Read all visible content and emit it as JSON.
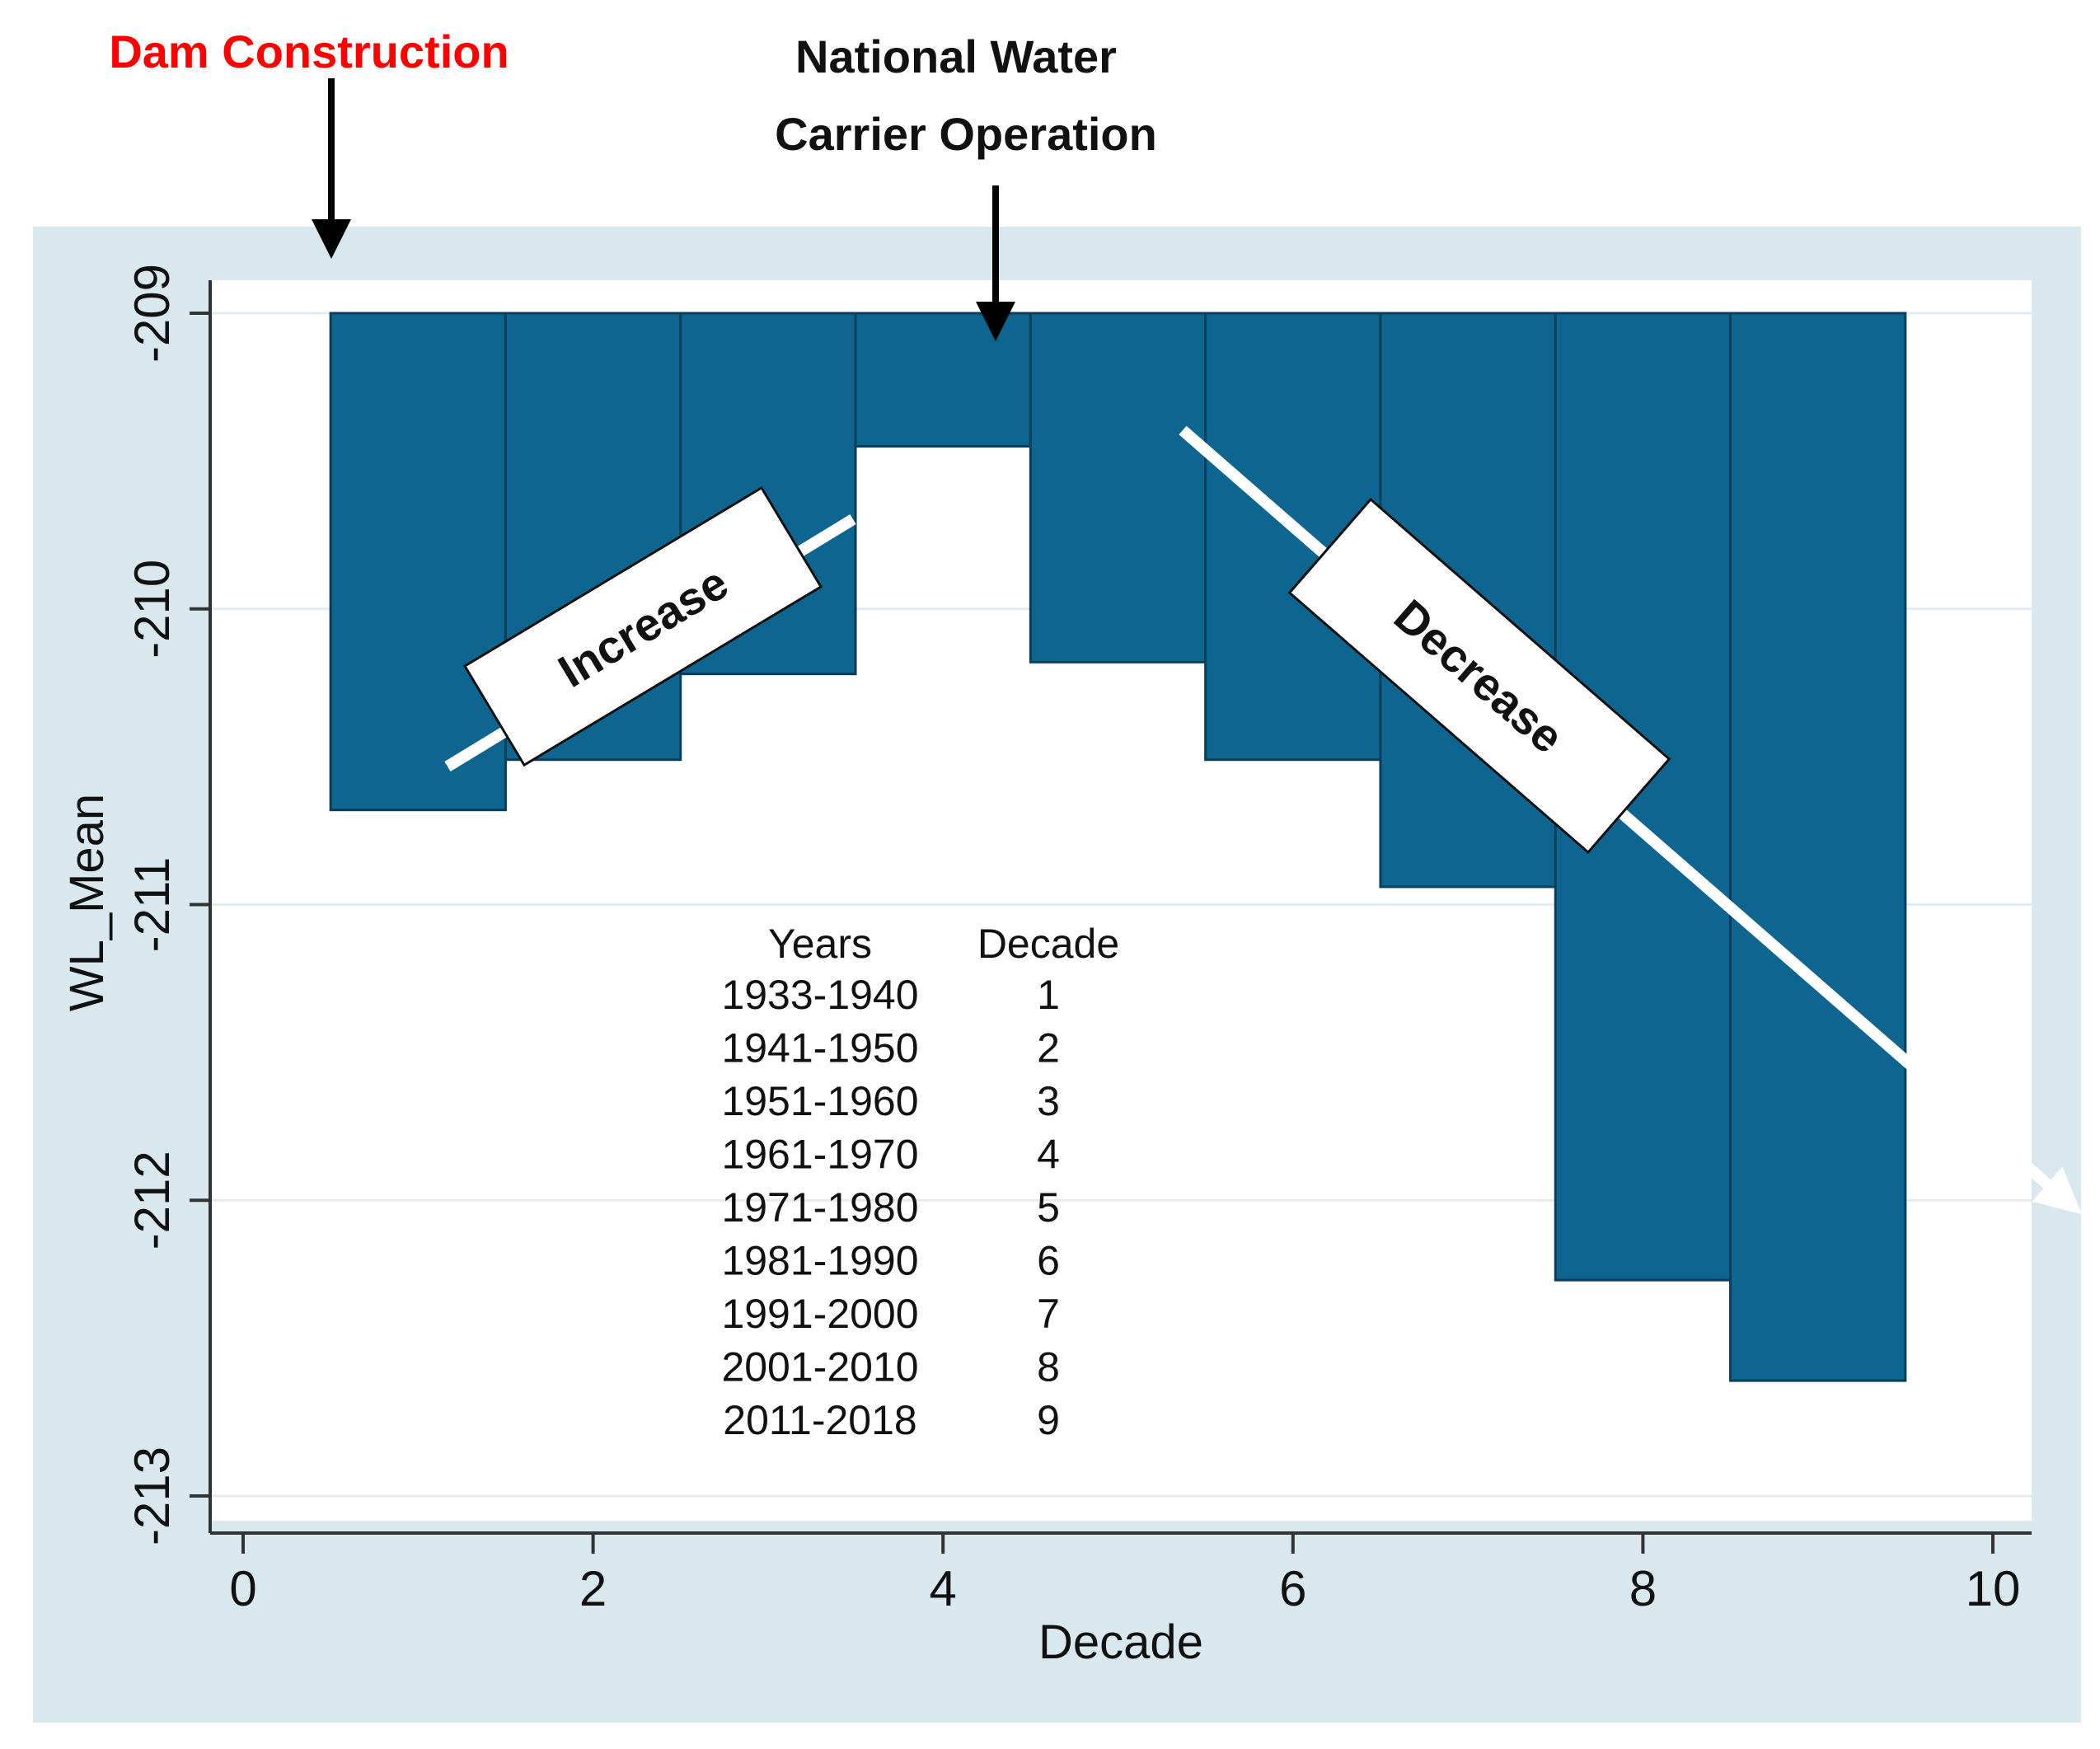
{
  "chart_data": {
    "type": "bar",
    "xlabel": "Decade",
    "ylabel": "WL_Mean",
    "x": [
      1,
      2,
      3,
      4,
      5,
      6,
      7,
      8,
      9
    ],
    "values": [
      -210.68,
      -210.51,
      -210.22,
      -209.45,
      -210.18,
      -210.51,
      -210.94,
      -212.27,
      -212.61
    ],
    "bar_base": -209,
    "xlim": [
      0,
      10
    ],
    "ylim": [
      -213,
      -209
    ],
    "x_ticks": [
      0,
      2,
      4,
      6,
      8,
      10
    ],
    "y_ticks": [
      -209,
      -210,
      -211,
      -212,
      -213
    ],
    "x_tick_labels": [
      "0",
      "2",
      "4",
      "6",
      "8",
      "10"
    ],
    "y_tick_labels": [
      "-209",
      "-210",
      "-211",
      "-212",
      "-213"
    ],
    "grid": true,
    "colors": {
      "bar": "#0e6690",
      "bar_edge": "#0a3f5c",
      "outer_bg": "#d9e7ee",
      "plot_bg": "#ffffff",
      "annotation_red": "#ff0000"
    },
    "annotations": {
      "dam_construction": "Dam Construction",
      "national_water_line1": "National Water",
      "national_water_line2": "Carrier Operation",
      "increase": "Increase",
      "decrease": "Decrease"
    },
    "legend_table": {
      "headers": [
        "Years",
        "Decade"
      ],
      "rows": [
        [
          "1933-1940",
          "1"
        ],
        [
          "1941-1950",
          "2"
        ],
        [
          "1951-1960",
          "3"
        ],
        [
          "1961-1970",
          "4"
        ],
        [
          "1971-1980",
          "5"
        ],
        [
          "1981-1990",
          "6"
        ],
        [
          "1991-2000",
          "7"
        ],
        [
          "2001-2010",
          "8"
        ],
        [
          "2011-2018",
          "9"
        ]
      ]
    }
  }
}
